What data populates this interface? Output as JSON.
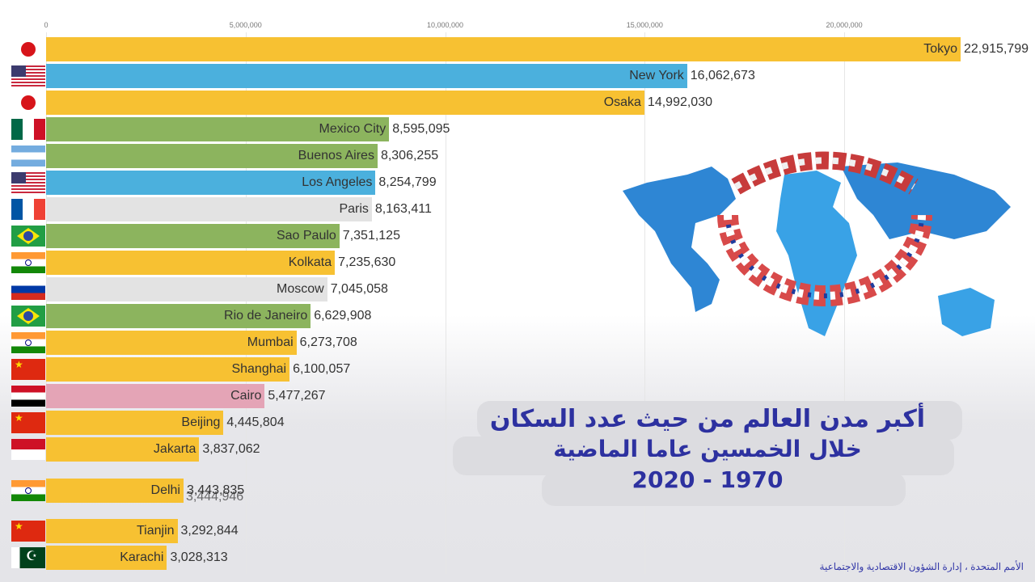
{
  "chart_data": {
    "type": "bar",
    "orientation": "horizontal",
    "xlim": [
      0,
      23000000
    ],
    "x_ticks": [
      "0",
      "5,000,000",
      "10,000,000",
      "15,000,000",
      "20,000,000"
    ],
    "x_tick_values": [
      0,
      5000000,
      10000000,
      15000000,
      20000000
    ],
    "grid": true,
    "series": [
      {
        "label": "Tokyo",
        "value": 22915799,
        "value_text": "22,915,799",
        "flag": "japan-flag-icon",
        "flag_class": "f-jp",
        "color": "#f7c132"
      },
      {
        "label": "New York",
        "value": 16062673,
        "value_text": "16,062,673",
        "flag": "usa-flag-icon",
        "flag_class": "f-us",
        "color": "#4bb0dd"
      },
      {
        "label": "Osaka",
        "value": 14992030,
        "value_text": "14,992,030",
        "flag": "japan-flag-icon",
        "flag_class": "f-jp",
        "color": "#f7c132"
      },
      {
        "label": "Mexico City",
        "value": 8595095,
        "value_text": "8,595,095",
        "flag": "mexico-flag-icon",
        "flag_class": "f-mx",
        "color": "#8cb45e"
      },
      {
        "label": "Buenos Aires",
        "value": 8306255,
        "value_text": "8,306,255",
        "flag": "argentina-flag-icon",
        "flag_class": "f-ar",
        "color": "#8cb45e"
      },
      {
        "label": "Los Angeles",
        "value": 8254799,
        "value_text": "8,254,799",
        "flag": "usa-flag-icon",
        "flag_class": "f-us",
        "color": "#4bb0dd"
      },
      {
        "label": "Paris",
        "value": 8163411,
        "value_text": "8,163,411",
        "flag": "france-flag-icon",
        "flag_class": "f-fr",
        "color": "#e3e3e3"
      },
      {
        "label": "Sao Paulo",
        "value": 7351125,
        "value_text": "7,351,125",
        "flag": "brazil-flag-icon",
        "flag_class": "f-br",
        "color": "#8cb45e"
      },
      {
        "label": "Kolkata",
        "value": 7235630,
        "value_text": "7,235,630",
        "flag": "india-flag-icon",
        "flag_class": "f-in",
        "color": "#f7c132"
      },
      {
        "label": "Moscow",
        "value": 7045058,
        "value_text": "7,045,058",
        "flag": "russia-flag-icon",
        "flag_class": "f-ru",
        "color": "#e3e3e3"
      },
      {
        "label": "Rio de Janeiro",
        "value": 6629908,
        "value_text": "6,629,908",
        "flag": "brazil-flag-icon",
        "flag_class": "f-br",
        "color": "#8cb45e"
      },
      {
        "label": "Mumbai",
        "value": 6273708,
        "value_text": "6,273,708",
        "flag": "india-flag-icon",
        "flag_class": "f-in",
        "color": "#f7c132"
      },
      {
        "label": "Shanghai",
        "value": 6100057,
        "value_text": "6,100,057",
        "flag": "china-flag-icon",
        "flag_class": "f-cn",
        "color": "#f7c132"
      },
      {
        "label": "Cairo",
        "value": 5477267,
        "value_text": "5,477,267",
        "flag": "egypt-flag-icon",
        "flag_class": "f-eg",
        "color": "#e4a4b6"
      },
      {
        "label": "Beijing",
        "value": 4445804,
        "value_text": "4,445,804",
        "flag": "china-flag-icon",
        "flag_class": "f-cn",
        "color": "#f7c132"
      },
      {
        "label": "Jakarta",
        "value": 3837062,
        "value_text": "3,837,062",
        "flag": "indonesia-flag-icon",
        "flag_class": "f-id",
        "color": "#f7c132"
      },
      {
        "label": "Delhi",
        "value": 3443835,
        "value_text": "3,443,835",
        "flag": "india-flag-icon",
        "flag_class": "f-in",
        "color": "#f7c132"
      },
      {
        "label": "Tianjin",
        "value": 3292844,
        "value_text": "3,292,844",
        "flag": "china-flag-icon",
        "flag_class": "f-cn",
        "color": "#f7c132"
      },
      {
        "label": "Karachi",
        "value": 3028313,
        "value_text": "3,028,313",
        "flag": "pakistan-flag-icon",
        "flag_class": "f-pk",
        "color": "#f7c132"
      }
    ],
    "transitioning_label": {
      "value_text": "3,444,946"
    }
  },
  "title": {
    "line1": "أكبر مدن العالم من حيث عدد السكان",
    "line2": "خلال الخمسين عاما الماضية",
    "line3": "2020 - 1970"
  },
  "source_note": "الأمم المتحدة ، إدارة الشؤون الاقتصادية والاجتماعية",
  "colors": {
    "title_text": "#2d31a0",
    "globe_ocean": "#2e86d4",
    "globe_land": "#39a2e6"
  },
  "icons": {
    "globe": "world-map-with-flags-icon"
  }
}
